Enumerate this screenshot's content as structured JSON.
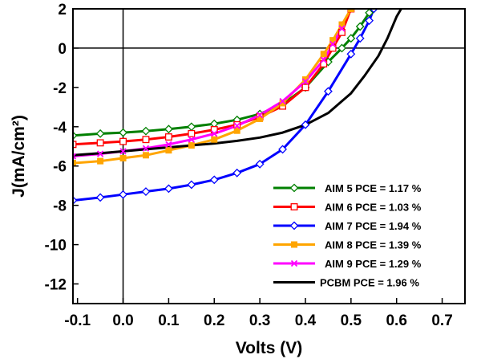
{
  "chart_data": {
    "type": "line",
    "title": "",
    "xlabel": "Volts (V)",
    "ylabel": "J(mA/cm²)",
    "xlim": [
      -0.11,
      0.75
    ],
    "ylim": [
      -13,
      2
    ],
    "x_ticks": [
      -0.1,
      0.0,
      0.1,
      0.2,
      0.3,
      0.4,
      0.5,
      0.6,
      0.7
    ],
    "x_tick_labels": [
      "-0.1",
      "0.0",
      "0.1",
      "0.2",
      "0.3",
      "0.4",
      "0.5",
      "0.6",
      "0.7"
    ],
    "y_ticks": [
      2,
      0,
      -2,
      -4,
      -6,
      -8,
      -10,
      -12
    ],
    "y_tick_labels": [
      "2",
      "0",
      "-2",
      "-4",
      "-6",
      "-8",
      "-10",
      "-12"
    ],
    "reference_lines": {
      "x": 0,
      "y": 0
    },
    "grid": false,
    "legend_position": "bottom-right",
    "series": [
      {
        "name": "AIM 5  PCE = 1.17 %",
        "color": "#008000",
        "marker": "diamond-open",
        "x": [
          -0.11,
          -0.05,
          0.0,
          0.05,
          0.1,
          0.15,
          0.2,
          0.25,
          0.3,
          0.35,
          0.4,
          0.45,
          0.48,
          0.5,
          0.52,
          0.54,
          0.55
        ],
        "y": [
          -4.45,
          -4.35,
          -4.3,
          -4.22,
          -4.12,
          -4.0,
          -3.85,
          -3.65,
          -3.35,
          -2.85,
          -2.0,
          -0.7,
          0.0,
          0.5,
          1.1,
          1.8,
          2.0
        ]
      },
      {
        "name": "AIM 6  PCE = 1.03 %",
        "color": "#ff0000",
        "marker": "square-open",
        "x": [
          -0.11,
          -0.05,
          0.0,
          0.05,
          0.1,
          0.15,
          0.2,
          0.25,
          0.3,
          0.35,
          0.4,
          0.44,
          0.46,
          0.48,
          0.5
        ],
        "y": [
          -4.9,
          -4.82,
          -4.75,
          -4.65,
          -4.52,
          -4.35,
          -4.15,
          -3.9,
          -3.5,
          -2.95,
          -2.0,
          -0.8,
          0.0,
          0.8,
          2.0
        ]
      },
      {
        "name": "AIM 7  PCE = 1.94 %",
        "color": "#0000ff",
        "marker": "diamond-open",
        "x": [
          -0.11,
          -0.05,
          0.0,
          0.05,
          0.1,
          0.15,
          0.2,
          0.25,
          0.3,
          0.35,
          0.4,
          0.45,
          0.5,
          0.52,
          0.54,
          0.55
        ],
        "y": [
          -7.75,
          -7.6,
          -7.45,
          -7.3,
          -7.15,
          -6.95,
          -6.7,
          -6.35,
          -5.9,
          -5.15,
          -3.9,
          -2.2,
          -0.3,
          0.5,
          1.4,
          2.0
        ]
      },
      {
        "name": "AIM 8  PCE = 1.39 %",
        "color": "#ffa500",
        "marker": "square-filled",
        "x": [
          -0.11,
          -0.05,
          0.0,
          0.05,
          0.1,
          0.15,
          0.2,
          0.25,
          0.3,
          0.35,
          0.4,
          0.44,
          0.46,
          0.48,
          0.5
        ],
        "y": [
          -5.85,
          -5.75,
          -5.6,
          -5.45,
          -5.2,
          -4.95,
          -4.65,
          -4.2,
          -3.6,
          -2.8,
          -1.6,
          -0.3,
          0.4,
          1.2,
          2.0
        ]
      },
      {
        "name": "AIM 9  PCE = 1.29 %",
        "color": "#ff00ff",
        "marker": "x",
        "x": [
          -0.11,
          -0.05,
          0.0,
          0.05,
          0.1,
          0.15,
          0.2,
          0.25,
          0.3,
          0.35,
          0.4,
          0.44,
          0.46,
          0.48
        ],
        "y": [
          -5.5,
          -5.38,
          -5.25,
          -5.1,
          -4.9,
          -4.65,
          -4.35,
          -3.95,
          -3.4,
          -2.7,
          -1.7,
          -0.6,
          0.2,
          1.0
        ]
      },
      {
        "name": "PCBM  PCE = 1.96 %",
        "color": "#000000",
        "marker": "none",
        "x": [
          -0.11,
          -0.05,
          0.0,
          0.05,
          0.1,
          0.15,
          0.2,
          0.25,
          0.3,
          0.35,
          0.4,
          0.45,
          0.5,
          0.53,
          0.56,
          0.58,
          0.6,
          0.61
        ],
        "y": [
          -5.45,
          -5.35,
          -5.25,
          -5.15,
          -5.05,
          -4.95,
          -4.85,
          -4.72,
          -4.55,
          -4.3,
          -3.9,
          -3.3,
          -2.3,
          -1.4,
          -0.4,
          0.5,
          1.6,
          2.0
        ]
      }
    ]
  }
}
